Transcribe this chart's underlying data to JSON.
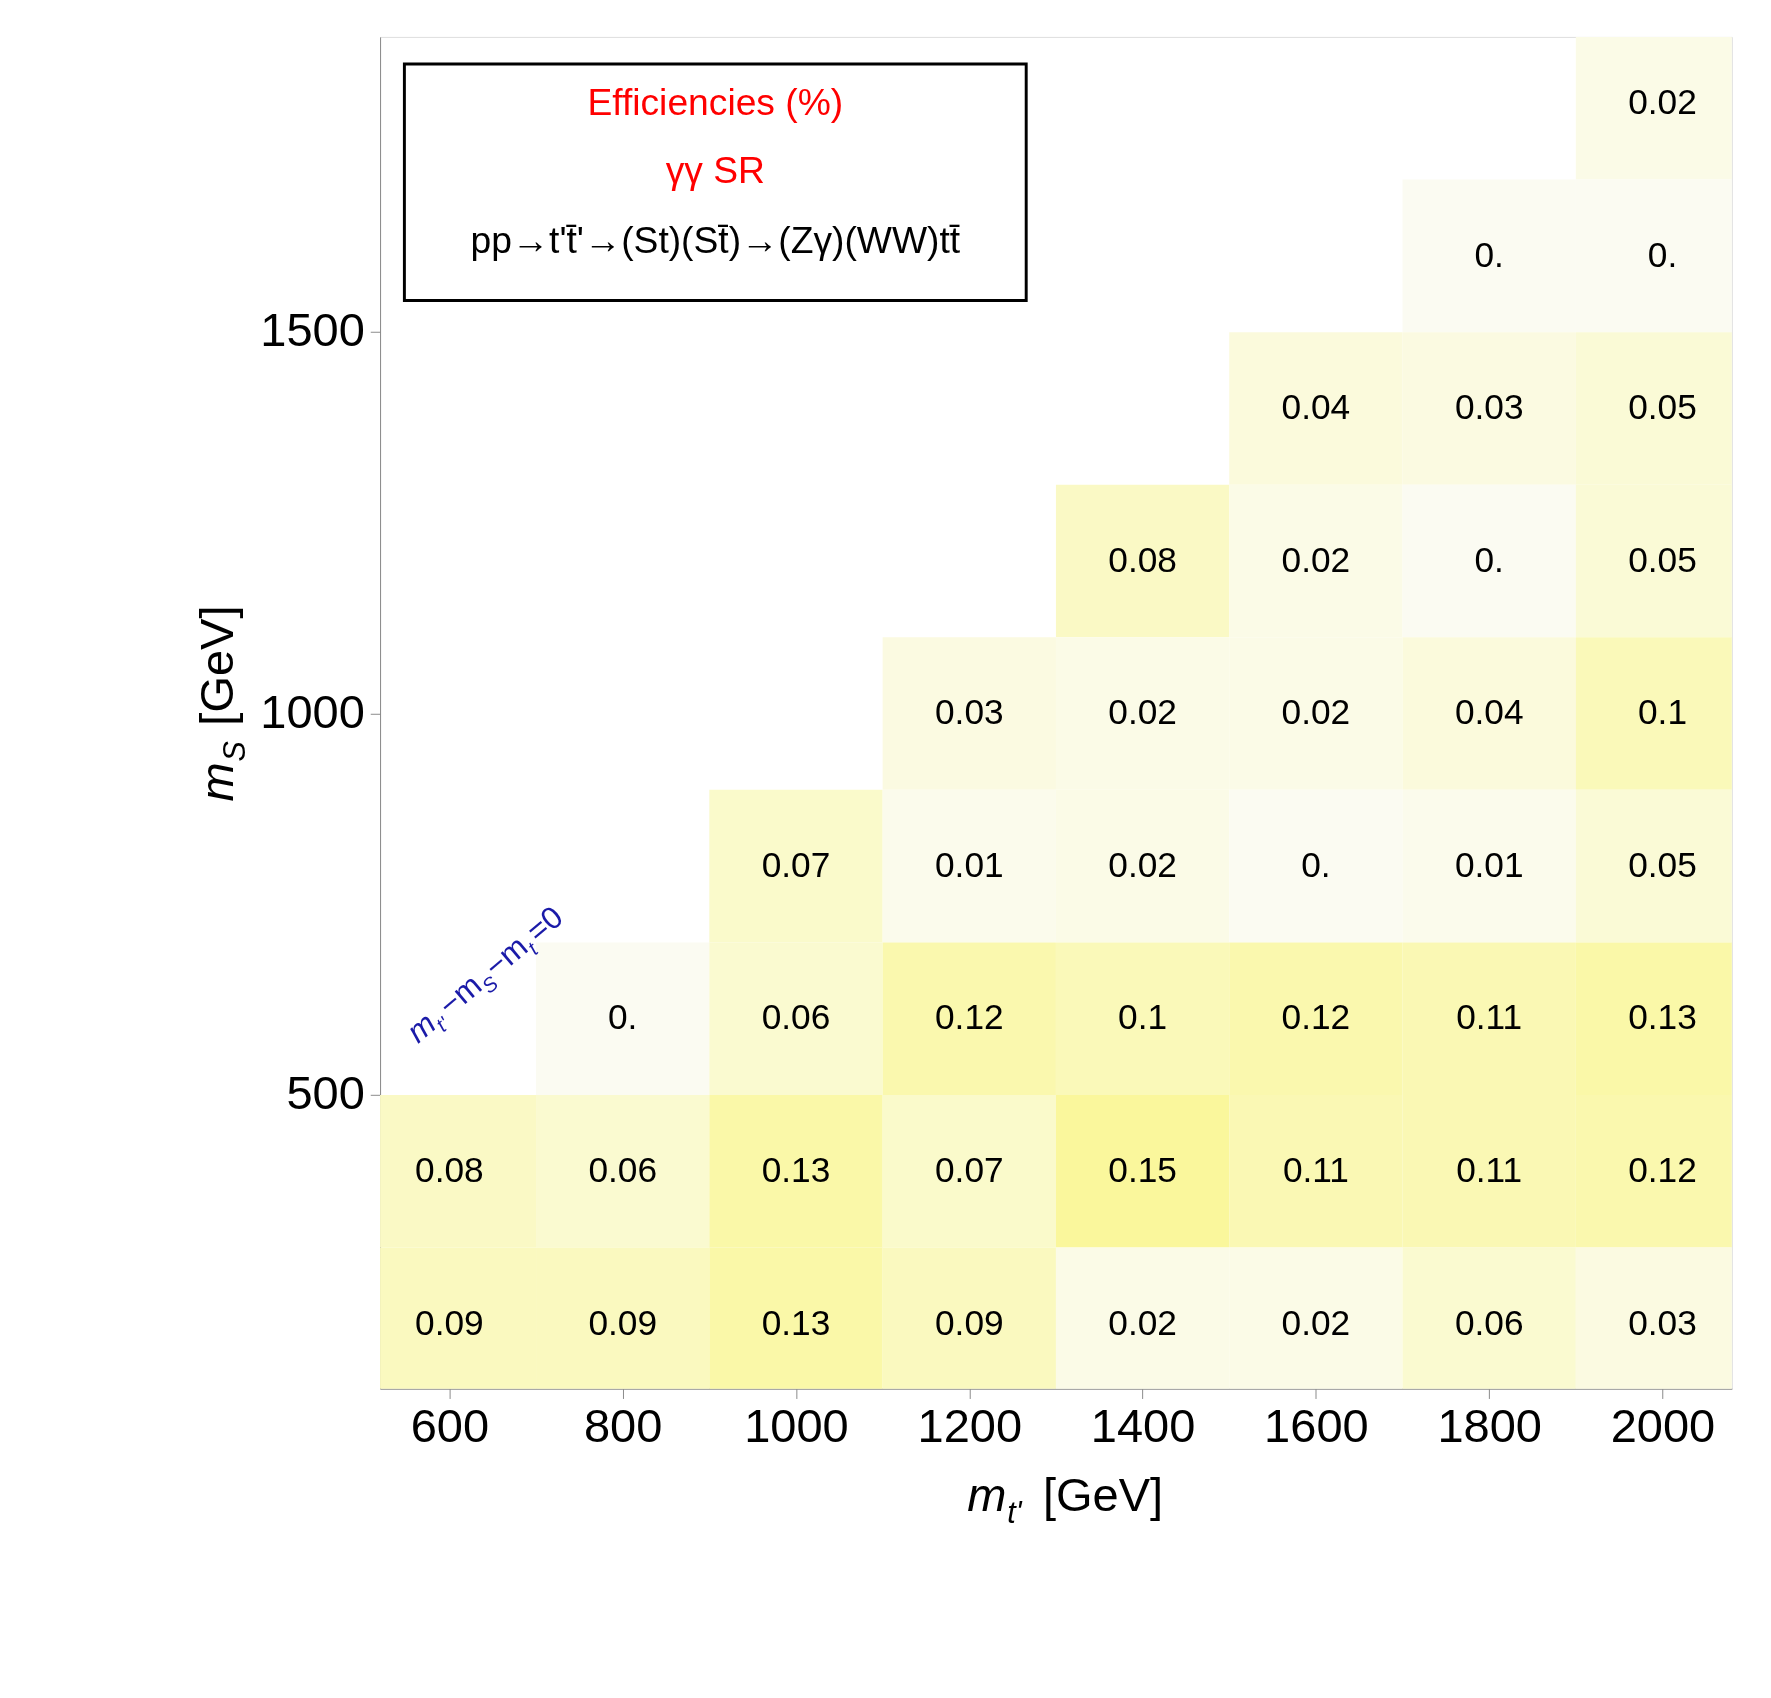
{
  "chart_data": {
    "type": "heatmap",
    "title": "Efficiencies (%)",
    "subtitle": "γγ SR",
    "xlabel": "m$_{t'}$ [GeV]",
    "ylabel": "m$_{S}$ [GeV]",
    "x": [
      600,
      800,
      1000,
      1200,
      1400,
      1600,
      1800,
      2000
    ],
    "y": [
      1800,
      1600,
      1400,
      1200,
      1000,
      800,
      600,
      400,
      200
    ],
    "cells": [
      [
        null,
        null,
        null,
        null,
        null,
        null,
        null,
        0.02
      ],
      [
        null,
        null,
        null,
        null,
        null,
        null,
        0,
        0
      ],
      [
        null,
        null,
        null,
        null,
        null,
        0.04,
        0.03,
        0.05
      ],
      [
        null,
        null,
        null,
        null,
        0.08,
        0.02,
        0,
        0.05
      ],
      [
        null,
        null,
        null,
        0.03,
        0.02,
        0.02,
        0.04,
        0.1
      ],
      [
        null,
        null,
        0.07,
        0.01,
        0.02,
        0,
        0.01,
        0.05
      ],
      [
        null,
        0,
        0.06,
        0.12,
        0.1,
        0.12,
        0.11,
        0.13
      ],
      [
        0.08,
        0.06,
        0.13,
        0.07,
        0.15,
        0.11,
        0.11,
        0.12
      ],
      [
        0.09,
        0.09,
        0.13,
        0.09,
        0.02,
        0.02,
        0.06,
        0.03
      ]
    ],
    "cell_labels": [
      [
        null,
        null,
        null,
        null,
        null,
        null,
        null,
        "0.02"
      ],
      [
        null,
        null,
        null,
        null,
        null,
        null,
        "0.",
        "0."
      ],
      [
        null,
        null,
        null,
        null,
        null,
        "0.04",
        "0.03",
        "0.05"
      ],
      [
        null,
        null,
        null,
        null,
        "0.08",
        "0.02",
        "0.",
        "0.05"
      ],
      [
        null,
        null,
        null,
        "0.03",
        "0.02",
        "0.02",
        "0.04",
        "0.1"
      ],
      [
        null,
        null,
        "0.07",
        "0.01",
        "0.02",
        "0.",
        "0.01",
        "0.05"
      ],
      [
        null,
        "0.",
        "0.06",
        "0.12",
        "0.1",
        "0.12",
        "0.11",
        "0.13"
      ],
      [
        "0.08",
        "0.06",
        "0.13",
        "0.07",
        "0.15",
        "0.11",
        "0.11",
        "0.12"
      ],
      [
        "0.09",
        "0.09",
        "0.13",
        "0.09",
        "0.02",
        "0.02",
        "0.06",
        "0.03"
      ]
    ],
    "xlim": [
      520,
      2080
    ],
    "ylim": [
      115,
      1887
    ],
    "xticks": [
      600,
      800,
      1000,
      1200,
      1400,
      1600,
      1800,
      2000
    ],
    "yticks": [
      500,
      1000,
      1500
    ],
    "annotations": [
      "pp→t't̄'→(St)(St̄)→(Zγ)(WW)tt̄",
      "m$_{t'}$−m$_{S}$−m$_{t}$=0"
    ]
  }
}
